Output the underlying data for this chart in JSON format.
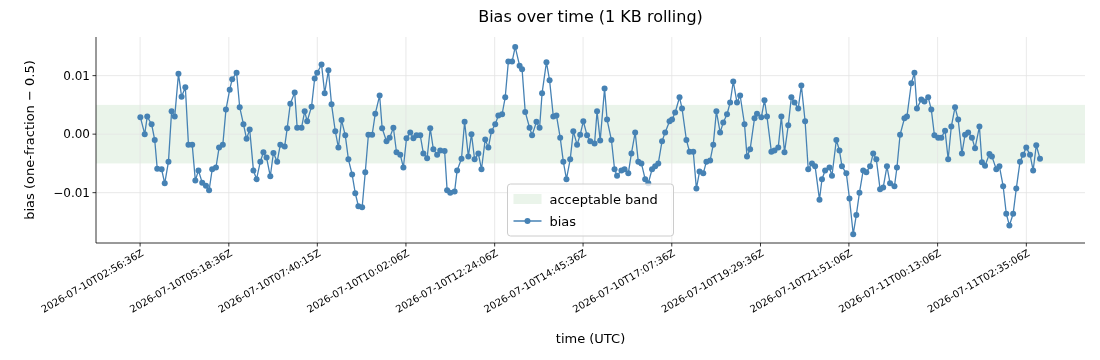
{
  "chart_data": {
    "type": "line",
    "title": "Bias over time (1 KB rolling)",
    "xlabel": "time (UTC)",
    "ylabel": "bias (one-fraction − 0.5)",
    "x": [
      "2026-07-10T02:57",
      "2026-07-10T03:04",
      "2026-07-10T03:08",
      "2026-07-10T03:15",
      "2026-07-10T03:20",
      "2026-07-10T03:24",
      "2026-07-10T03:31",
      "2026-07-10T03:36",
      "2026-07-10T03:42",
      "2026-07-10T03:47",
      "2026-07-10T03:52",
      "2026-07-10T03:58",
      "2026-07-10T04:03",
      "2026-07-10T04:09",
      "2026-07-10T04:14",
      "2026-07-10T04:20",
      "2026-07-10T04:25",
      "2026-07-10T04:30",
      "2026-07-10T04:36",
      "2026-07-10T04:42",
      "2026-07-10T04:47",
      "2026-07-10T04:52",
      "2026-07-10T04:58",
      "2026-07-10T05:03",
      "2026-07-10T05:09",
      "2026-07-10T05:14",
      "2026-07-10T05:20",
      "2026-07-10T05:24",
      "2026-07-10T05:31",
      "2026-07-10T05:36",
      "2026-07-10T05:42",
      "2026-07-10T05:47",
      "2026-07-10T05:52",
      "2026-07-10T05:58",
      "2026-07-10T06:03",
      "2026-07-10T06:09",
      "2026-07-10T06:14",
      "2026-07-10T06:19",
      "2026-07-10T06:25",
      "2026-07-10T06:30",
      "2026-07-10T06:36",
      "2026-07-10T06:41",
      "2026-07-10T06:48",
      "2026-07-10T06:52",
      "2026-07-10T06:57",
      "2026-07-10T07:04",
      "2026-07-10T07:08",
      "2026-07-10T07:15",
      "2026-07-10T07:20",
      "2026-07-10T07:24",
      "2026-07-10T07:31",
      "2026-07-10T07:36",
      "2026-07-10T07:40",
      "2026-07-10T07:47",
      "2026-07-10T07:52",
      "2026-07-10T07:58",
      "2026-07-10T08:03",
      "2026-07-10T08:09",
      "2026-07-10T08:14",
      "2026-07-10T08:19",
      "2026-07-10T08:25",
      "2026-07-10T08:30",
      "2026-07-10T08:36",
      "2026-07-10T08:41",
      "2026-07-10T08:46",
      "2026-07-10T08:52",
      "2026-07-10T08:57",
      "2026-07-10T09:02",
      "2026-07-10T09:08",
      "2026-07-10T09:13",
      "2026-07-10T09:20",
      "2026-07-10T09:24",
      "2026-07-10T09:31",
      "2026-07-10T09:36",
      "2026-07-10T09:42",
      "2026-07-10T09:47",
      "2026-07-10T09:53",
      "2026-07-10T09:58",
      "2026-07-10T10:03",
      "2026-07-10T10:09",
      "2026-07-10T10:14",
      "2026-07-10T10:19",
      "2026-07-10T10:25",
      "2026-07-10T10:30",
      "2026-07-10T10:36",
      "2026-07-10T10:41",
      "2026-07-10T10:46",
      "2026-07-10T10:52",
      "2026-07-10T10:57",
      "2026-07-10T11:04",
      "2026-07-10T11:08",
      "2026-07-10T11:13",
      "2026-07-10T11:20",
      "2026-07-10T11:24",
      "2026-07-10T11:31",
      "2026-07-10T11:36",
      "2026-07-10T11:42",
      "2026-07-10T11:47",
      "2026-07-10T11:52",
      "2026-07-10T11:58",
      "2026-07-10T12:03",
      "2026-07-10T12:09",
      "2026-07-10T12:14",
      "2026-07-10T12:19",
      "2026-07-10T12:25",
      "2026-07-10T12:30",
      "2026-07-10T12:36",
      "2026-07-10T12:41",
      "2026-07-10T12:46",
      "2026-07-10T12:52",
      "2026-07-10T12:57",
      "2026-07-10T13:04",
      "2026-07-10T13:08",
      "2026-07-10T13:13",
      "2026-07-10T13:20",
      "2026-07-10T13:24",
      "2026-07-10T13:31",
      "2026-07-10T13:36",
      "2026-07-10T13:40",
      "2026-07-10T13:47",
      "2026-07-10T13:52",
      "2026-07-10T13:58",
      "2026-07-10T14:03",
      "2026-07-10T14:09",
      "2026-07-10T14:14",
      "2026-07-10T14:19",
      "2026-07-10T14:25",
      "2026-07-10T14:30",
      "2026-07-10T14:36",
      "2026-07-10T14:41",
      "2026-07-10T14:46",
      "2026-07-10T14:52",
      "2026-07-10T14:57",
      "2026-07-10T15:04",
      "2026-07-10T15:08",
      "2026-07-10T15:13",
      "2026-07-10T15:20",
      "2026-07-10T15:24",
      "2026-07-10T15:31",
      "2026-07-10T15:36",
      "2026-07-10T15:40",
      "2026-07-10T15:47",
      "2026-07-10T15:52",
      "2026-07-10T15:58",
      "2026-07-10T16:03",
      "2026-07-10T16:09",
      "2026-07-10T16:14",
      "2026-07-10T16:19",
      "2026-07-10T16:25",
      "2026-07-10T16:30",
      "2026-07-10T16:36",
      "2026-07-10T16:41",
      "2026-07-10T16:46",
      "2026-07-10T16:52",
      "2026-07-10T16:57",
      "2026-07-10T17:04",
      "2026-07-10T17:08",
      "2026-07-10T17:13",
      "2026-07-10T17:20",
      "2026-07-10T17:24",
      "2026-07-10T17:31",
      "2026-07-10T17:36",
      "2026-07-10T17:42",
      "2026-07-10T17:47",
      "2026-07-10T17:52",
      "2026-07-10T17:58",
      "2026-07-10T18:03",
      "2026-07-10T18:09",
      "2026-07-10T18:14",
      "2026-07-10T18:19",
      "2026-07-10T18:25",
      "2026-07-10T18:30",
      "2026-07-10T18:36",
      "2026-07-10T18:41",
      "2026-07-10T18:46",
      "2026-07-10T18:52",
      "2026-07-10T18:57",
      "2026-07-10T19:04",
      "2026-07-10T19:08",
      "2026-07-10T19:13",
      "2026-07-10T19:20",
      "2026-07-10T19:24",
      "2026-07-10T19:31",
      "2026-07-10T19:36",
      "2026-07-10T19:40",
      "2026-07-10T19:47",
      "2026-07-10T19:52",
      "2026-07-10T19:58",
      "2026-07-10T20:03",
      "2026-07-10T20:08",
      "2026-07-10T20:14",
      "2026-07-10T20:19",
      "2026-07-10T20:24",
      "2026-07-10T20:30",
      "2026-07-10T20:35",
      "2026-07-10T20:41",
      "2026-07-10T20:46",
      "2026-07-10T20:52",
      "2026-07-10T20:57",
      "2026-07-10T21:04",
      "2026-07-10T21:08",
      "2026-07-10T21:13",
      "2026-07-10T21:20",
      "2026-07-10T21:24",
      "2026-07-10T21:31",
      "2026-07-10T21:36",
      "2026-07-10T21:40",
      "2026-07-10T21:47",
      "2026-07-10T21:52",
      "2026-07-10T21:58",
      "2026-07-10T22:03",
      "2026-07-10T22:08",
      "2026-07-10T22:14",
      "2026-07-10T22:19",
      "2026-07-10T22:25",
      "2026-07-10T22:30",
      "2026-07-10T22:35",
      "2026-07-10T22:41",
      "2026-07-10T22:46",
      "2026-07-10T22:52",
      "2026-07-10T22:57",
      "2026-07-10T23:04",
      "2026-07-10T23:08",
      "2026-07-10T23:13",
      "2026-07-10T23:20",
      "2026-07-10T23:24",
      "2026-07-10T23:31",
      "2026-07-10T23:36",
      "2026-07-10T23:40",
      "2026-07-10T23:47",
      "2026-07-10T23:52",
      "2026-07-10T23:58",
      "2026-07-11T00:03",
      "2026-07-11T00:08",
      "2026-07-11T00:14",
      "2026-07-11T00:19",
      "2026-07-11T00:25",
      "2026-07-11T00:30",
      "2026-07-11T00:35",
      "2026-07-11T00:41",
      "2026-07-11T00:46",
      "2026-07-11T00:52",
      "2026-07-11T00:57",
      "2026-07-11T01:02",
      "2026-07-11T01:08",
      "2026-07-11T01:13",
      "2026-07-11T01:20",
      "2026-07-11T01:24",
      "2026-07-11T01:29",
      "2026-07-11T01:36",
      "2026-07-11T01:40",
      "2026-07-11T01:47",
      "2026-07-11T01:52",
      "2026-07-11T01:58",
      "2026-07-11T02:03",
      "2026-07-11T02:08",
      "2026-07-11T02:14",
      "2026-07-11T02:19",
      "2026-07-11T02:25",
      "2026-07-11T02:30",
      "2026-07-11T02:35",
      "2026-07-11T02:41",
      "2026-07-11T02:46",
      "2026-07-11T02:51",
      "2026-07-11T02:57"
    ],
    "series": [
      {
        "name": "bias",
        "color": "#4682b4",
        "values": [
          0.0029,
          0.0,
          0.003,
          0.0017,
          -0.001,
          -0.0059,
          -0.006,
          -0.0084,
          -0.0047,
          0.0039,
          0.003,
          0.0103,
          0.0064,
          0.008,
          -0.0018,
          -0.0018,
          -0.0079,
          -0.0062,
          -0.0083,
          -0.0088,
          -0.0096,
          -0.006,
          -0.0057,
          -0.0023,
          -0.0018,
          0.0042,
          0.0076,
          0.0094,
          0.0105,
          0.0046,
          0.0017,
          -0.0008,
          0.0008,
          -0.0062,
          -0.0077,
          -0.0047,
          -0.0031,
          -0.004,
          -0.0072,
          -0.0032,
          -0.0047,
          -0.0018,
          -0.0021,
          0.001,
          0.0052,
          0.0071,
          0.0011,
          0.0011,
          0.0039,
          0.0022,
          0.0047,
          0.0095,
          0.0105,
          0.0119,
          0.007,
          0.0109,
          0.0051,
          0.0005,
          -0.0023,
          0.0024,
          -0.0002,
          -0.0043,
          -0.0069,
          -0.0101,
          -0.0123,
          -0.0125,
          -0.0065,
          -0.0001,
          -0.0001,
          0.0035,
          0.0066,
          0.001,
          -0.0012,
          -0.0006,
          0.0011,
          -0.0031,
          -0.0035,
          -0.0057,
          -0.0007,
          0.0003,
          -0.0007,
          -0.0002,
          -0.0002,
          -0.0033,
          -0.0041,
          0.001,
          -0.0026,
          -0.0035,
          -0.0028,
          -0.0029,
          -0.0096,
          -0.01,
          -0.0098,
          -0.0062,
          -0.0042,
          0.0021,
          -0.0038,
          0.0,
          -0.0043,
          -0.0033,
          -0.006,
          -0.0009,
          -0.0023,
          0.0005,
          0.0017,
          0.0032,
          0.0034,
          0.0063,
          0.0124,
          0.0124,
          0.0149,
          0.0117,
          0.0111,
          0.0038,
          0.0011,
          -0.0002,
          0.0021,
          0.0011,
          0.007,
          0.0123,
          0.0092,
          0.003,
          0.0032,
          -0.0006,
          -0.0047,
          -0.0077,
          -0.0043,
          0.0005,
          -0.0018,
          -0.0001,
          0.0022,
          -0.0002,
          -0.0012,
          -0.0016,
          0.0039,
          -0.0011,
          0.0078,
          0.0025,
          -0.001,
          -0.006,
          -0.0071,
          -0.0062,
          -0.006,
          -0.0067,
          -0.0033,
          0.0003,
          -0.0047,
          -0.005,
          -0.0077,
          -0.0084,
          -0.006,
          -0.0055,
          -0.005,
          -0.0012,
          0.0003,
          0.0022,
          0.0025,
          0.0037,
          0.0063,
          0.0044,
          -0.001,
          -0.003,
          -0.003,
          -0.0093,
          -0.0064,
          -0.0067,
          -0.0047,
          -0.0045,
          -0.0018,
          0.0039,
          0.0003,
          0.002,
          0.0034,
          0.0054,
          0.009,
          0.0054,
          0.0066,
          0.0017,
          -0.0038,
          -0.0026,
          0.0027,
          0.0035,
          0.0029,
          0.0058,
          0.003,
          -0.003,
          -0.0028,
          -0.0023,
          0.003,
          -0.0031,
          0.0015,
          0.0063,
          0.0054,
          0.0044,
          0.0083,
          0.0022,
          -0.006,
          -0.005,
          -0.0055,
          -0.0112,
          -0.0077,
          -0.0062,
          -0.0057,
          -0.0071,
          -0.001,
          -0.0028,
          -0.0055,
          -0.0067,
          -0.011,
          -0.0171,
          -0.0138,
          -0.01,
          -0.0062,
          -0.0065,
          -0.0055,
          -0.0033,
          -0.0043,
          -0.0094,
          -0.0091,
          -0.0055,
          -0.0084,
          -0.0089,
          -0.0057,
          -0.0001,
          0.0027,
          0.003,
          0.0087,
          0.0105,
          0.0044,
          0.0059,
          0.0056,
          0.0063,
          0.0042,
          -0.0002,
          -0.0006,
          -0.0006,
          0.0006,
          -0.0043,
          0.0013,
          0.0046,
          0.0025,
          -0.0033,
          -0.0001,
          0.0003,
          -0.0006,
          -0.0024,
          0.0013,
          -0.0048,
          -0.0054,
          -0.0034,
          -0.0038,
          -0.006,
          -0.0055,
          -0.0089,
          -0.0136,
          -0.0156,
          -0.0136,
          -0.0093,
          -0.0047,
          -0.0035,
          -0.0023,
          -0.0035,
          -0.0062,
          -0.0019,
          -0.0042
        ]
      }
    ],
    "xlim": [
      "2026-07-10T01:46",
      "2026-07-11T04:09"
    ],
    "xticks": [
      {
        "value": "2026-07-10T02:56:36",
        "label": "2026-07-10T02:56:36Z"
      },
      {
        "value": "2026-07-10T05:18:36",
        "label": "2026-07-10T05:18:36Z"
      },
      {
        "value": "2026-07-10T07:40:15",
        "label": "2026-07-10T07:40:15Z"
      },
      {
        "value": "2026-07-10T10:02:06",
        "label": "2026-07-10T10:02:06Z"
      },
      {
        "value": "2026-07-10T12:24:06",
        "label": "2026-07-10T12:24:06Z"
      },
      {
        "value": "2026-07-10T14:45:36",
        "label": "2026-07-10T14:45:36Z"
      },
      {
        "value": "2026-07-10T17:07:36",
        "label": "2026-07-10T17:07:36Z"
      },
      {
        "value": "2026-07-10T19:29:36",
        "label": "2026-07-10T19:29:36Z"
      },
      {
        "value": "2026-07-10T21:51:06",
        "label": "2026-07-10T21:51:06Z"
      },
      {
        "value": "2026-07-11T00:13:06",
        "label": "2026-07-11T00:13:06Z"
      },
      {
        "value": "2026-07-11T02:35:06",
        "label": "2026-07-11T02:35:06Z"
      }
    ],
    "ylim": [
      -0.0186,
      0.0166
    ],
    "yticks": [
      {
        "value": -0.01,
        "label": "−0.01"
      },
      {
        "value": 0,
        "label": "0.00"
      },
      {
        "value": 0.01,
        "label": "0.01"
      }
    ],
    "bands": [
      {
        "axis": "y",
        "from": -0.005,
        "to": 0.005,
        "label": "acceptable band",
        "color": "#eaf4ea"
      }
    ],
    "grid": true,
    "legend": "bottom",
    "marker": "circle",
    "line_style": "solid"
  }
}
